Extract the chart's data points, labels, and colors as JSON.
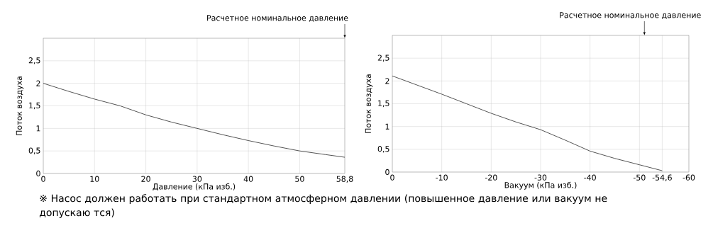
{
  "chart_data": [
    {
      "type": "line",
      "xlabel": "Давление (кПа изб.)",
      "ylabel": "Поток воздуха",
      "grid": true,
      "x": [
        0,
        5,
        10,
        15,
        20,
        25,
        30,
        35,
        40,
        45,
        50,
        55,
        58.8
      ],
      "series": [
        {
          "color": "#404040",
          "values": [
            2.0,
            1.82,
            1.65,
            1.5,
            1.3,
            1.14,
            1.0,
            0.86,
            0.73,
            0.61,
            0.5,
            0.42,
            0.36
          ]
        }
      ],
      "xlim": [
        0,
        58.8
      ],
      "ylim": [
        0,
        3
      ],
      "xticks": [
        0,
        10,
        20,
        30,
        40,
        50,
        {
          "value": 58.8,
          "label": "58,8"
        }
      ],
      "yticks": [
        0,
        {
          "value": 0.5,
          "label": "0,5"
        },
        1,
        {
          "value": 1.5,
          "label": "1,5"
        },
        2,
        {
          "value": 2.5,
          "label": "2,5"
        },
        {
          "value": 3,
          "label": null
        }
      ],
      "annotations": [
        "Расчетное номинальное давление",
        "※ Насос должен работать при стандартном атмосферном давлении (повышенное давление или вакуум не допускаю тся)"
      ]
    },
    {
      "type": "line",
      "xlabel": "Вакуум (кПа изб.)",
      "ylabel": "Поток воздуха",
      "grid": true,
      "x": [
        0,
        -5,
        -10,
        -15,
        -20,
        -25,
        -30,
        -35,
        -40,
        -45,
        -50,
        -54.6
      ],
      "series": [
        {
          "color": "#404040",
          "values": [
            2.11,
            1.91,
            1.71,
            1.5,
            1.29,
            1.1,
            0.93,
            0.7,
            0.46,
            0.3,
            0.16,
            0.03
          ]
        }
      ],
      "xlim": [
        0,
        -60
      ],
      "ylim": [
        0,
        3
      ],
      "xticks": [
        0,
        -10,
        -20,
        -30,
        -40,
        -50,
        {
          "value": -54.6,
          "label": "-54,6"
        },
        -60
      ],
      "yticks": [
        0,
        {
          "value": 0.5,
          "label": "0,5"
        },
        1,
        {
          "value": 1.5,
          "label": "1,5"
        },
        2,
        {
          "value": 2.5,
          "label": "2,5"
        },
        {
          "value": 3,
          "label": null
        }
      ],
      "annotations": [
        "Расчетное номинальное давление"
      ]
    }
  ]
}
